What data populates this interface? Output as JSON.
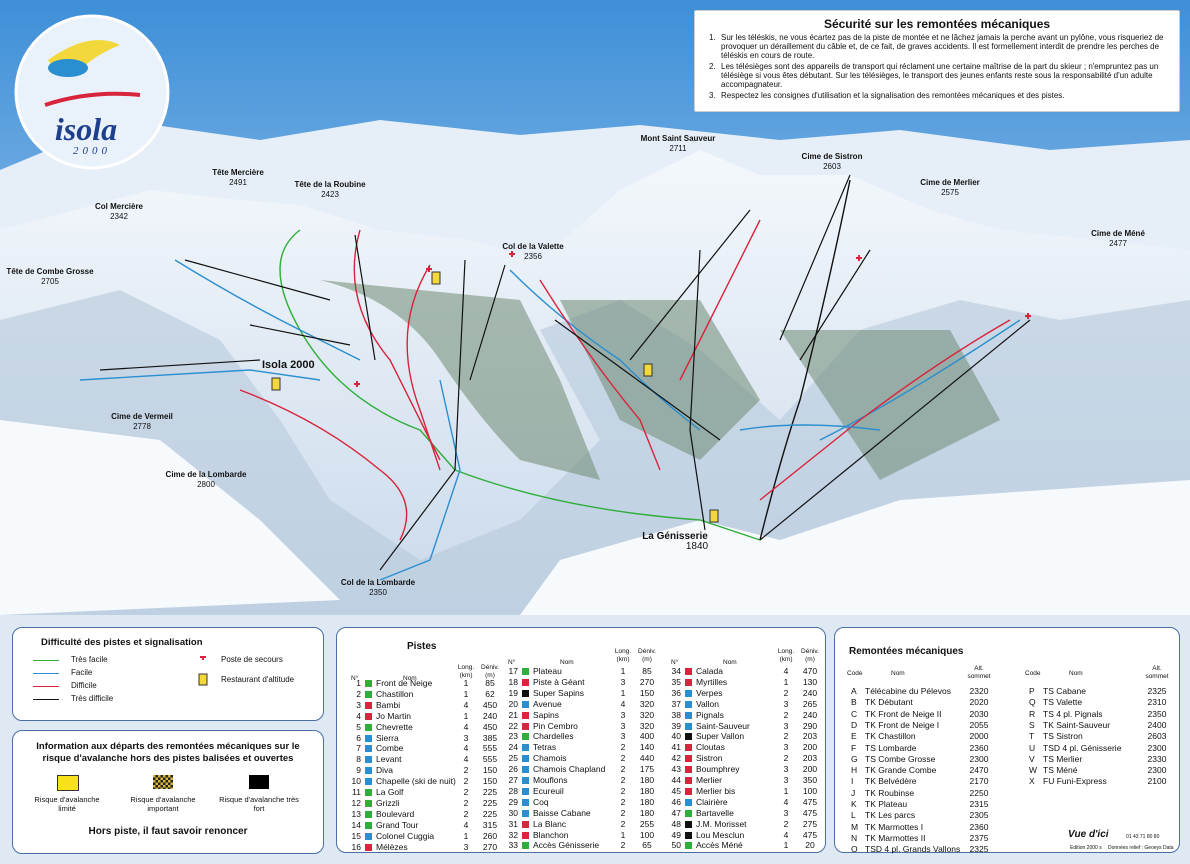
{
  "logo": {
    "name": "isola",
    "sub": "2000"
  },
  "safety": {
    "title": "Sécurité sur les remontées mécaniques",
    "items": [
      {
        "number": "1.",
        "text": "Sur les téléskis, ne vous écartez pas de la piste de montée et ne lâchez jamais la perche avant un pylône, vous risqueriez de provoquer un déraillement du câble et, de ce fait, de graves accidents. Il est formellement interdit de prendre les perches de téléskis en cours de route."
      },
      {
        "number": "2.",
        "text": "Les télésièges sont des appareils de transport qui réclament une certaine maîtrise de la part du skieur ; n'empruntez pas un télésiège si vous êtes débutant. Sur les télésièges, le transport des jeunes enfants reste sous la responsabilité d'un adulte accompagnateur."
      },
      {
        "number": "3.",
        "text": "Respectez les consignes d'utilisation et la signalisation des remontées mécaniques et des pistes."
      }
    ]
  },
  "places": [
    {
      "name": "Tête Mercière",
      "alt": "2491"
    },
    {
      "name": "Tête de la Roubine",
      "alt": "2423"
    },
    {
      "name": "Col Mercière",
      "alt": "2342"
    },
    {
      "name": "Tête de Combe Grosse",
      "alt": "2705"
    },
    {
      "name": "Cime de Vermeil",
      "alt": "2778"
    },
    {
      "name": "Cime de la Lombarde",
      "alt": "2800"
    },
    {
      "name": "Col de la Lombarde",
      "alt": "2350"
    },
    {
      "name": "Col de la Valette",
      "alt": "2356"
    },
    {
      "name": "Mont Saint Sauveur",
      "alt": "2711"
    },
    {
      "name": "Cime de Sistron",
      "alt": "2603"
    },
    {
      "name": "Cime de Merlier",
      "alt": "2575"
    },
    {
      "name": "Cime de Méné",
      "alt": "2477"
    },
    {
      "name": "La Génisserie",
      "alt": "1840"
    }
  ],
  "resort": "Isola 2000",
  "legend": {
    "title": "Difficulté des pistes et signalisation",
    "levels": [
      {
        "label": "Très facile",
        "color": "#2fae3a"
      },
      {
        "label": "Facile",
        "color": "#2a8fd0"
      },
      {
        "label": "Difficile",
        "color": "#d8243c"
      },
      {
        "label": "Très difficile",
        "color": "#111111"
      }
    ],
    "rescue": "Poste de secours",
    "restaurant": "Restaurant d'altitude"
  },
  "avalanche": {
    "title": "Information aux départs des remontées mécaniques sur le risque d'avalanche hors des pistes balisées et ouvertes",
    "levels": [
      {
        "label": "Risque d'avalanche limité"
      },
      {
        "label": "Risque d'avalanche important"
      },
      {
        "label": "Risque d'avalanche très fort"
      }
    ],
    "footer": "Hors piste, il faut savoir renoncer"
  },
  "pistes": {
    "title": "Pistes",
    "headers": {
      "num": "N°",
      "name": "Nom",
      "length": "Long. (km)",
      "drop": "Déniv. (m)"
    },
    "rows": [
      {
        "num": "1",
        "name": "Front de Neige",
        "length": "1",
        "drop": "85",
        "color": "#2fae3a"
      },
      {
        "num": "2",
        "name": "Chastillon",
        "length": "1",
        "drop": "62",
        "color": "#2fae3a"
      },
      {
        "num": "3",
        "name": "Bambi",
        "length": "4",
        "drop": "450",
        "color": "#d8243c"
      },
      {
        "num": "4",
        "name": "Jo Martin",
        "length": "1",
        "drop": "240",
        "color": "#d8243c"
      },
      {
        "num": "5",
        "name": "Chevrette",
        "length": "4",
        "drop": "450",
        "color": "#2fae3a"
      },
      {
        "num": "6",
        "name": "Sierra",
        "length": "3",
        "drop": "385",
        "color": "#2a8fd0"
      },
      {
        "num": "7",
        "name": "Combe",
        "length": "4",
        "drop": "555",
        "color": "#2a8fd0"
      },
      {
        "num": "8",
        "name": "Levant",
        "length": "4",
        "drop": "555",
        "color": "#2a8fd0"
      },
      {
        "num": "9",
        "name": "Diva",
        "length": "2",
        "drop": "150",
        "color": "#2a8fd0"
      },
      {
        "num": "10",
        "name": "Chapelle (ski de nuit)",
        "length": "2",
        "drop": "150",
        "color": "#2a8fd0"
      },
      {
        "num": "11",
        "name": "La Golf",
        "length": "2",
        "drop": "225",
        "color": "#2fae3a"
      },
      {
        "num": "12",
        "name": "Grizzli",
        "length": "2",
        "drop": "225",
        "color": "#2fae3a"
      },
      {
        "num": "13",
        "name": "Boulevard",
        "length": "2",
        "drop": "225",
        "color": "#2fae3a"
      },
      {
        "num": "14",
        "name": "Grand Tour",
        "length": "4",
        "drop": "315",
        "color": "#2fae3a"
      },
      {
        "num": "15",
        "name": "Colonel Cuggia",
        "length": "1",
        "drop": "260",
        "color": "#2a8fd0"
      },
      {
        "num": "16",
        "name": "Mélèzes",
        "length": "3",
        "drop": "270",
        "color": "#d8243c"
      },
      {
        "num": "17",
        "name": "Plateau",
        "length": "1",
        "drop": "85",
        "color": "#2fae3a"
      },
      {
        "num": "18",
        "name": "Piste à Géant",
        "length": "3",
        "drop": "270",
        "color": "#d8243c"
      },
      {
        "num": "19",
        "name": "Super Sapins",
        "length": "1",
        "drop": "150",
        "color": "#111111"
      },
      {
        "num": "20",
        "name": "Avenue",
        "length": "4",
        "drop": "320",
        "color": "#2a8fd0"
      },
      {
        "num": "21",
        "name": "Sapins",
        "length": "3",
        "drop": "320",
        "color": "#d8243c"
      },
      {
        "num": "22",
        "name": "Pin Cembro",
        "length": "3",
        "drop": "320",
        "color": "#d8243c"
      },
      {
        "num": "23",
        "name": "Chardelles",
        "length": "3",
        "drop": "400",
        "color": "#2fae3a"
      },
      {
        "num": "24",
        "name": "Tetras",
        "length": "2",
        "drop": "140",
        "color": "#2a8fd0"
      },
      {
        "num": "25",
        "name": "Chamois",
        "length": "2",
        "drop": "440",
        "color": "#2a8fd0"
      },
      {
        "num": "26",
        "name": "Chamois Chapland",
        "length": "2",
        "drop": "175",
        "color": "#2a8fd0"
      },
      {
        "num": "27",
        "name": "Mouflons",
        "length": "2",
        "drop": "180",
        "color": "#2a8fd0"
      },
      {
        "num": "28",
        "name": "Ecureuil",
        "length": "2",
        "drop": "180",
        "color": "#2a8fd0"
      },
      {
        "num": "29",
        "name": "Coq",
        "length": "2",
        "drop": "180",
        "color": "#2a8fd0"
      },
      {
        "num": "30",
        "name": "Baisse Cabane",
        "length": "2",
        "drop": "180",
        "color": "#2a8fd0"
      },
      {
        "num": "31",
        "name": "La Blanc",
        "length": "2",
        "drop": "255",
        "color": "#d8243c"
      },
      {
        "num": "32",
        "name": "Blanchon",
        "length": "1",
        "drop": "100",
        "color": "#d8243c"
      },
      {
        "num": "33",
        "name": "Accès Génisserie",
        "length": "2",
        "drop": "65",
        "color": "#2fae3a"
      },
      {
        "num": "34",
        "name": "Calada",
        "length": "4",
        "drop": "470",
        "color": "#d8243c"
      },
      {
        "num": "35",
        "name": "Myrtilles",
        "length": "1",
        "drop": "130",
        "color": "#d8243c"
      },
      {
        "num": "36",
        "name": "Verpes",
        "length": "2",
        "drop": "240",
        "color": "#2a8fd0"
      },
      {
        "num": "37",
        "name": "Vallon",
        "length": "3",
        "drop": "265",
        "color": "#2a8fd0"
      },
      {
        "num": "38",
        "name": "Pignals",
        "length": "2",
        "drop": "240",
        "color": "#2a8fd0"
      },
      {
        "num": "39",
        "name": "Saint-Sauveur",
        "length": "3",
        "drop": "290",
        "color": "#2a8fd0"
      },
      {
        "num": "40",
        "name": "Super Vallon",
        "length": "2",
        "drop": "203",
        "color": "#111111"
      },
      {
        "num": "41",
        "name": "Cloutas",
        "length": "3",
        "drop": "200",
        "color": "#d8243c"
      },
      {
        "num": "42",
        "name": "Sistron",
        "length": "2",
        "drop": "203",
        "color": "#d8243c"
      },
      {
        "num": "43",
        "name": "Boumphrey",
        "length": "3",
        "drop": "200",
        "color": "#d8243c"
      },
      {
        "num": "44",
        "name": "Merlier",
        "length": "3",
        "drop": "350",
        "color": "#d8243c"
      },
      {
        "num": "45",
        "name": "Merlier bis",
        "length": "1",
        "drop": "100",
        "color": "#d8243c"
      },
      {
        "num": "46",
        "name": "Clairière",
        "length": "4",
        "drop": "475",
        "color": "#2a8fd0"
      },
      {
        "num": "47",
        "name": "Bartavelle",
        "length": "3",
        "drop": "475",
        "color": "#2fae3a"
      },
      {
        "num": "48",
        "name": "J.M. Morisset",
        "length": "2",
        "drop": "275",
        "color": "#111111"
      },
      {
        "num": "49",
        "name": "Lou Mesclun",
        "length": "4",
        "drop": "475",
        "color": "#111111"
      },
      {
        "num": "50",
        "name": "Accès Méné",
        "length": "1",
        "drop": "20",
        "color": "#2fae3a"
      }
    ]
  },
  "lifts": {
    "title": "Remontées mécaniques",
    "headers": {
      "code": "Code",
      "name": "Nom",
      "alt": "Alt. sommet"
    },
    "rows": [
      {
        "code": "A",
        "name": "Télécabine du Pélevos",
        "alt": "2320"
      },
      {
        "code": "B",
        "name": "TK Débutant",
        "alt": "2020"
      },
      {
        "code": "C",
        "name": "TK Front de Neige II",
        "alt": "2030"
      },
      {
        "code": "D",
        "name": "TK Front de Neige I",
        "alt": "2055"
      },
      {
        "code": "E",
        "name": "TK Chastillon",
        "alt": "2000"
      },
      {
        "code": "F",
        "name": "TS Lombarde",
        "alt": "2360"
      },
      {
        "code": "G",
        "name": "TS Combe Grosse",
        "alt": "2300"
      },
      {
        "code": "H",
        "name": "TK Grande Combe",
        "alt": "2470"
      },
      {
        "code": "I",
        "name": "TK Belvédère",
        "alt": "2170"
      },
      {
        "code": "J",
        "name": "TK Roubinse",
        "alt": "2250"
      },
      {
        "code": "K",
        "name": "TK Plateau",
        "alt": "2315"
      },
      {
        "code": "L",
        "name": "TK Les parcs",
        "alt": "2305"
      },
      {
        "code": "M",
        "name": "TK Marmottes I",
        "alt": "2360"
      },
      {
        "code": "N",
        "name": "TK Marmottes II",
        "alt": "2375"
      },
      {
        "code": "O",
        "name": "TSD 4 pl. Grands Vallons",
        "alt": "2325"
      },
      {
        "code": "P",
        "name": "TS Cabane",
        "alt": "2325"
      },
      {
        "code": "Q",
        "name": "TS Valette",
        "alt": "2310"
      },
      {
        "code": "R",
        "name": "TS 4 pl. Pignals",
        "alt": "2350"
      },
      {
        "code": "S",
        "name": "TK Saint-Sauveur",
        "alt": "2400"
      },
      {
        "code": "T",
        "name": "TS Sistron",
        "alt": "2603"
      },
      {
        "code": "U",
        "name": "TSD 4 pl. Génisserie",
        "alt": "2300"
      },
      {
        "code": "V",
        "name": "TS Merlier",
        "alt": "2330"
      },
      {
        "code": "W",
        "name": "TS Méné",
        "alt": "2300"
      },
      {
        "code": "X",
        "name": "FU Funi-Express",
        "alt": "2100"
      }
    ]
  },
  "credits": {
    "brand": "Vue d'ici",
    "phone": "01 43 71 80 80",
    "edition": "Edition 2000 s",
    "relief": "Données relief : Geoeys Data"
  }
}
